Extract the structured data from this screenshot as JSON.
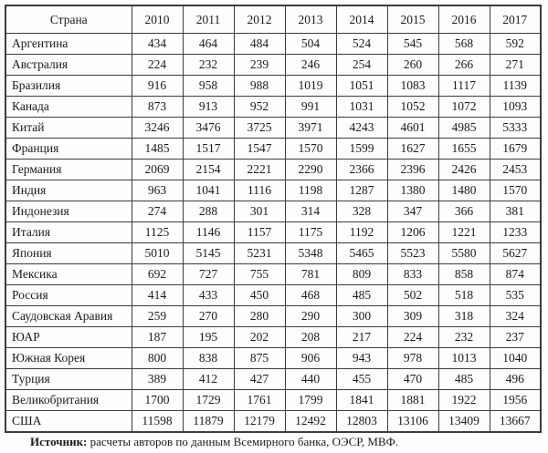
{
  "table": {
    "country_label": "Страна",
    "years": [
      "2010",
      "2011",
      "2012",
      "2013",
      "2014",
      "2015",
      "2016",
      "2017"
    ],
    "rows": [
      {
        "country": "Аргентина",
        "values": [
          434,
          464,
          484,
          504,
          524,
          545,
          568,
          592
        ]
      },
      {
        "country": "Австралия",
        "values": [
          224,
          232,
          239,
          246,
          254,
          260,
          266,
          271
        ]
      },
      {
        "country": "Бразилия",
        "values": [
          916,
          958,
          988,
          1019,
          1051,
          1083,
          1117,
          1139
        ]
      },
      {
        "country": "Канада",
        "values": [
          873,
          913,
          952,
          991,
          1031,
          1052,
          1072,
          1093
        ]
      },
      {
        "country": "Китай",
        "values": [
          3246,
          3476,
          3725,
          3971,
          4243,
          4601,
          4985,
          5333
        ]
      },
      {
        "country": "Франция",
        "values": [
          1485,
          1517,
          1547,
          1570,
          1599,
          1627,
          1655,
          1679
        ]
      },
      {
        "country": "Германия",
        "values": [
          2069,
          2154,
          2221,
          2290,
          2366,
          2396,
          2426,
          2453
        ]
      },
      {
        "country": "Индия",
        "values": [
          963,
          1041,
          1116,
          1198,
          1287,
          1380,
          1480,
          1570
        ]
      },
      {
        "country": "Индонезия",
        "values": [
          274,
          288,
          301,
          314,
          328,
          347,
          366,
          381
        ]
      },
      {
        "country": "Италия",
        "values": [
          1125,
          1146,
          1157,
          1175,
          1192,
          1206,
          1221,
          1233
        ]
      },
      {
        "country": "Япония",
        "values": [
          5010,
          5145,
          5231,
          5348,
          5465,
          5523,
          5580,
          5627
        ]
      },
      {
        "country": "Мексика",
        "values": [
          692,
          727,
          755,
          781,
          809,
          833,
          858,
          874
        ]
      },
      {
        "country": "Россия",
        "values": [
          414,
          433,
          450,
          468,
          485,
          502,
          518,
          535
        ]
      },
      {
        "country": "Саудовская Аравия",
        "values": [
          259,
          270,
          280,
          290,
          300,
          309,
          318,
          324
        ]
      },
      {
        "country": "ЮАР",
        "values": [
          187,
          195,
          202,
          208,
          217,
          224,
          232,
          237
        ]
      },
      {
        "country": "Южная Корея",
        "values": [
          800,
          838,
          875,
          906,
          943,
          978,
          1013,
          1040
        ]
      },
      {
        "country": "Турция",
        "values": [
          389,
          412,
          427,
          440,
          455,
          470,
          485,
          496
        ]
      },
      {
        "country": "Великобритания",
        "values": [
          1700,
          1729,
          1761,
          1799,
          1841,
          1881,
          1922,
          1956
        ]
      },
      {
        "country": "США",
        "values": [
          11598,
          11879,
          12179,
          12492,
          12803,
          13106,
          13409,
          13667
        ]
      }
    ]
  },
  "source_note": {
    "label": "Источник:",
    "text": " расчеты авторов по данным Всемирного банка, ОЭСР, МВФ."
  },
  "colors": {
    "border": "#3d3d3d",
    "text": "#1b1b1b",
    "background": "#fdfdfd"
  }
}
